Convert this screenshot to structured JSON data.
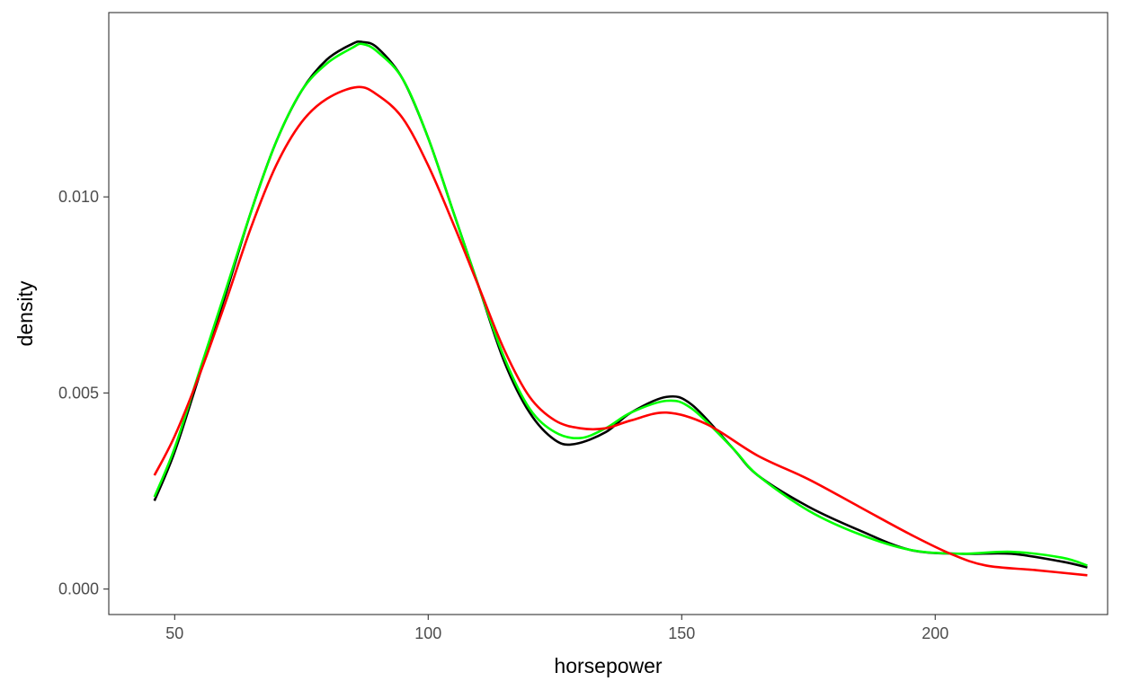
{
  "chart_data": {
    "type": "line",
    "title": "",
    "xlabel": "horsepower",
    "ylabel": "density",
    "xlim": [
      37,
      234
    ],
    "ylim": [
      -0.00065,
      0.0147
    ],
    "x_ticks": [
      50,
      100,
      150,
      200
    ],
    "x_tick_labels": [
      "50",
      "100",
      "150",
      "200"
    ],
    "y_ticks": [
      0,
      0.005,
      0.01
    ],
    "y_tick_labels": [
      "0.000",
      "0.005",
      "0.010"
    ],
    "grid": false,
    "legend": "none",
    "series": [
      {
        "color": "#000000",
        "points": [
          [
            46,
            0.00225
          ],
          [
            50,
            0.0035
          ],
          [
            55,
            0.0055
          ],
          [
            60,
            0.0075
          ],
          [
            65,
            0.0096
          ],
          [
            70,
            0.0114
          ],
          [
            75,
            0.0127
          ],
          [
            80,
            0.0135
          ],
          [
            85,
            0.0139
          ],
          [
            87,
            0.01395
          ],
          [
            90,
            0.0138
          ],
          [
            95,
            0.013
          ],
          [
            100,
            0.0115
          ],
          [
            105,
            0.0096
          ],
          [
            110,
            0.0077
          ],
          [
            115,
            0.0058
          ],
          [
            120,
            0.0045
          ],
          [
            125,
            0.0038
          ],
          [
            129,
            0.0037
          ],
          [
            135,
            0.004
          ],
          [
            140,
            0.0045
          ],
          [
            147,
            0.0049
          ],
          [
            152,
            0.0047
          ],
          [
            160,
            0.0036
          ],
          [
            165,
            0.0029
          ],
          [
            175,
            0.0021
          ],
          [
            185,
            0.0015
          ],
          [
            195,
            0.001
          ],
          [
            205,
            0.0009
          ],
          [
            215,
            0.0009
          ],
          [
            225,
            0.0007
          ],
          [
            230,
            0.00055
          ]
        ]
      },
      {
        "color": "#00ff00",
        "points": [
          [
            46,
            0.00235
          ],
          [
            50,
            0.0036
          ],
          [
            55,
            0.0056
          ],
          [
            60,
            0.0076
          ],
          [
            65,
            0.0096
          ],
          [
            70,
            0.0114
          ],
          [
            75,
            0.0127
          ],
          [
            80,
            0.0134
          ],
          [
            85,
            0.0138
          ],
          [
            87,
            0.0139
          ],
          [
            90,
            0.0137
          ],
          [
            95,
            0.013
          ],
          [
            100,
            0.0115
          ],
          [
            105,
            0.0096
          ],
          [
            110,
            0.0077
          ],
          [
            115,
            0.0059
          ],
          [
            120,
            0.0046
          ],
          [
            125,
            0.004
          ],
          [
            130,
            0.00385
          ],
          [
            135,
            0.0041
          ],
          [
            140,
            0.0045
          ],
          [
            147,
            0.0048
          ],
          [
            152,
            0.0046
          ],
          [
            160,
            0.0036
          ],
          [
            165,
            0.0029
          ],
          [
            175,
            0.002
          ],
          [
            185,
            0.0014
          ],
          [
            195,
            0.001
          ],
          [
            205,
            0.0009
          ],
          [
            215,
            0.00095
          ],
          [
            225,
            0.0008
          ],
          [
            230,
            0.0006
          ]
        ]
      },
      {
        "color": "#ff0000",
        "points": [
          [
            46,
            0.0029
          ],
          [
            50,
            0.0039
          ],
          [
            55,
            0.0055
          ],
          [
            60,
            0.0073
          ],
          [
            65,
            0.0092
          ],
          [
            70,
            0.0108
          ],
          [
            75,
            0.0119
          ],
          [
            80,
            0.0125
          ],
          [
            86,
            0.0128
          ],
          [
            90,
            0.0126
          ],
          [
            95,
            0.012
          ],
          [
            100,
            0.0108
          ],
          [
            105,
            0.0093
          ],
          [
            110,
            0.0077
          ],
          [
            115,
            0.0061
          ],
          [
            120,
            0.0049
          ],
          [
            125,
            0.0043
          ],
          [
            130,
            0.0041
          ],
          [
            135,
            0.0041
          ],
          [
            140,
            0.0043
          ],
          [
            147,
            0.0045
          ],
          [
            155,
            0.0042
          ],
          [
            165,
            0.0034
          ],
          [
            175,
            0.0028
          ],
          [
            185,
            0.0021
          ],
          [
            195,
            0.0014
          ],
          [
            203,
            0.0009
          ],
          [
            210,
            0.0006
          ],
          [
            220,
            0.00048
          ],
          [
            230,
            0.00035
          ]
        ]
      }
    ]
  }
}
